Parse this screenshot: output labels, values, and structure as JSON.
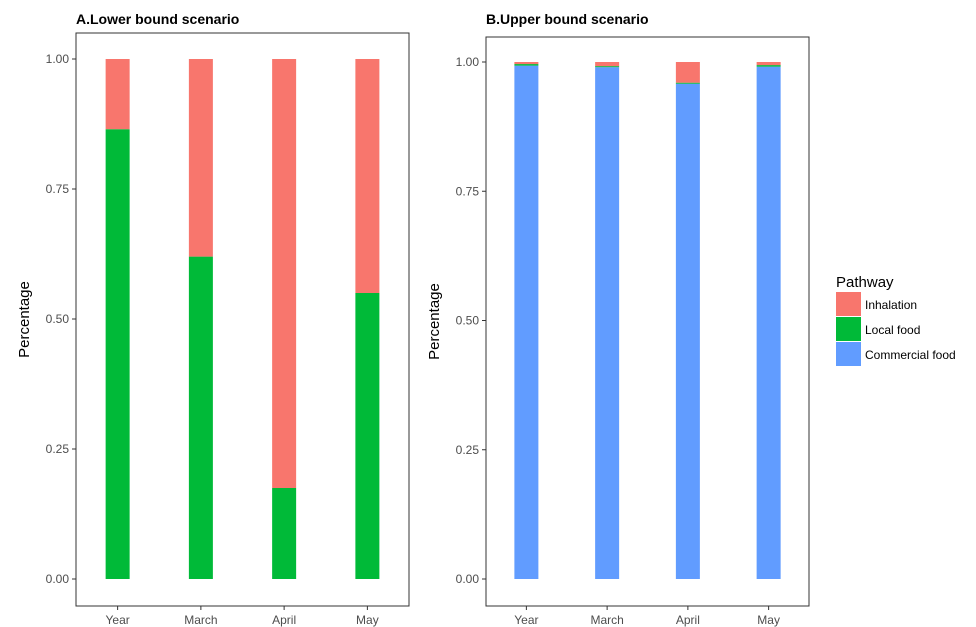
{
  "chart_data": [
    {
      "type": "bar",
      "stacked": true,
      "title": "A.Lower bound scenario",
      "xlabel": "",
      "ylabel": "Percentage",
      "ylim": [
        0,
        1
      ],
      "yticks": [
        "0.00",
        "0.25",
        "0.50",
        "0.75",
        "1.00"
      ],
      "categories": [
        "Year",
        "March",
        "April",
        "May"
      ],
      "series": [
        {
          "name": "Inhalation",
          "color": "#F8766D",
          "values": [
            0.135,
            0.38,
            0.825,
            0.45
          ]
        },
        {
          "name": "Local food",
          "color": "#00BA38",
          "values": [
            0.865,
            0.62,
            0.175,
            0.55
          ]
        },
        {
          "name": "Commercial food",
          "color": "#619CFF",
          "values": [
            0,
            0,
            0,
            0
          ]
        }
      ],
      "grid": false
    },
    {
      "type": "bar",
      "stacked": true,
      "title": "B.Upper bound scenario",
      "xlabel": "",
      "ylabel": "Percentage",
      "ylim": [
        0,
        1
      ],
      "yticks": [
        "0.00",
        "0.25",
        "0.50",
        "0.75",
        "1.00"
      ],
      "categories": [
        "Year",
        "March",
        "April",
        "May"
      ],
      "series": [
        {
          "name": "Inhalation",
          "color": "#F8766D",
          "values": [
            0.004,
            0.008,
            0.04,
            0.006
          ]
        },
        {
          "name": "Local food",
          "color": "#00BA38",
          "values": [
            0.003,
            0.002,
            0.002,
            0.003
          ]
        },
        {
          "name": "Commercial food",
          "color": "#619CFF",
          "values": [
            0.993,
            0.99,
            0.958,
            0.991
          ]
        }
      ],
      "grid": false
    }
  ],
  "legend": {
    "title": "Pathway",
    "position": "right",
    "items": [
      {
        "label": "Inhalation",
        "color": "#F8766D"
      },
      {
        "label": "Local food",
        "color": "#00BA38"
      },
      {
        "label": "Commercial food",
        "color": "#619CFF"
      }
    ]
  }
}
